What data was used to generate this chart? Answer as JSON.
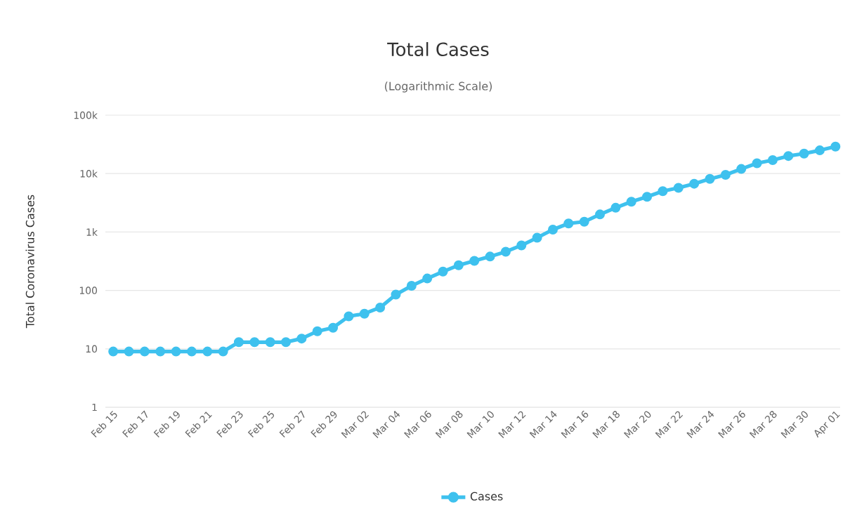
{
  "chart_data": {
    "type": "line",
    "title": "Total Cases",
    "subtitle": "(Logarithmic Scale)",
    "ylabel": "Total Coronavirus Cases",
    "categories": [
      "Feb 15",
      null,
      "Feb 17",
      null,
      "Feb 19",
      null,
      "Feb 21",
      null,
      "Feb 23",
      null,
      "Feb 25",
      null,
      "Feb 27",
      null,
      "Feb 29",
      null,
      "Mar 02",
      null,
      "Mar 04",
      null,
      "Mar 06",
      null,
      "Mar 08",
      null,
      "Mar 10",
      null,
      "Mar 12",
      null,
      "Mar 14",
      null,
      "Mar 16",
      null,
      "Mar 18",
      null,
      "Mar 20",
      null,
      "Mar 22",
      null,
      "Mar 24",
      null,
      "Mar 26",
      null,
      "Mar 28",
      null,
      "Mar 30",
      null,
      "Apr 01"
    ],
    "series": [
      {
        "name": "Cases",
        "color": "#3ec1ee",
        "values": [
          9,
          9,
          9,
          9,
          9,
          9,
          9,
          9,
          13,
          13,
          13,
          13,
          15,
          20,
          23,
          36,
          40,
          51,
          85,
          120,
          160,
          210,
          270,
          320,
          380,
          460,
          590,
          800,
          1100,
          1400,
          1500,
          2000,
          2600,
          3300,
          4000,
          5000,
          5700,
          6700,
          8100,
          9500,
          12000,
          15000,
          17000,
          20000,
          22000,
          25000,
          29000
        ]
      }
    ],
    "log": "y",
    "ylim": [
      1,
      100000
    ],
    "yticks": [
      1,
      10,
      100,
      {
        "value": 1000,
        "label": "1k"
      },
      {
        "value": 10000,
        "label": "10k"
      },
      {
        "value": 100000,
        "label": "100k"
      }
    ],
    "grid": "y",
    "legend": "bottom",
    "marker": "circle",
    "line_style": "solid"
  }
}
